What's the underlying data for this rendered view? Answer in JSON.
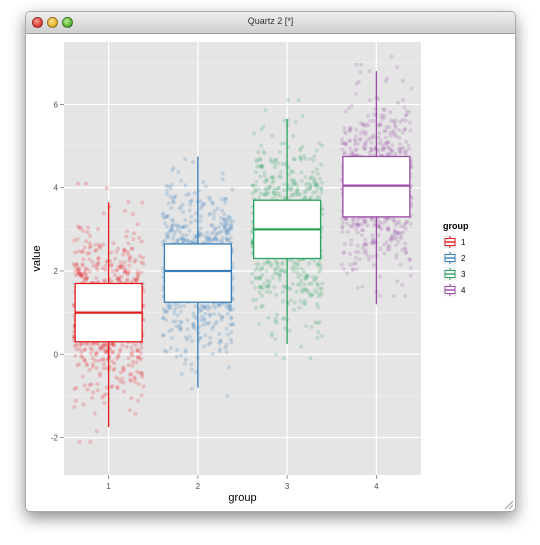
{
  "window": {
    "title": "Quartz 2 [*]"
  },
  "colors": {
    "panel": "#e5e5e5",
    "grid": "#ffffff",
    "group1": "#e41a1c",
    "group2": "#377eb8",
    "group3": "#2ca25f",
    "group4": "#984ea3",
    "box_fill": "#ffffff",
    "text": "#000000",
    "tick_text": "#4d4d4d"
  },
  "chart_data": {
    "type": "boxplot",
    "title": "",
    "xlabel": "group",
    "ylabel": "value",
    "categories": [
      "1",
      "2",
      "3",
      "4"
    ],
    "ylim": [
      -2.9,
      7.5
    ],
    "yticks": [
      "-2",
      "0",
      "2",
      "4",
      "6"
    ],
    "grid": true,
    "legend": {
      "title": "group",
      "position": "right",
      "entries": [
        "1",
        "2",
        "3",
        "4"
      ]
    },
    "boxes": [
      {
        "name": "1",
        "min": -1.75,
        "q1": 0.3,
        "median": 1.0,
        "q3": 1.7,
        "max": 3.65
      },
      {
        "name": "2",
        "min": -0.8,
        "q1": 1.25,
        "median": 2.0,
        "q3": 2.65,
        "max": 4.75
      },
      {
        "name": "3",
        "min": 0.25,
        "q1": 2.3,
        "median": 3.0,
        "q3": 3.7,
        "max": 5.65
      },
      {
        "name": "4",
        "min": 1.2,
        "q1": 3.3,
        "median": 4.05,
        "q3": 4.75,
        "max": 6.8
      }
    ],
    "points": {
      "jitter": true,
      "per_group": 700,
      "distribution": "normal",
      "sd": 1.0,
      "alpha": 0.2
    }
  }
}
